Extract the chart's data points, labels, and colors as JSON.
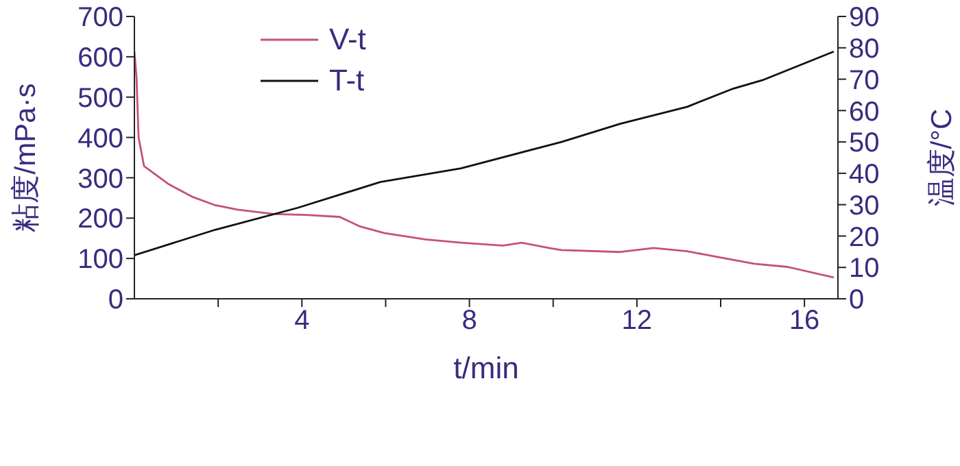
{
  "chart_data": {
    "type": "line",
    "xlabel": "t/min",
    "ylabel": "粘度/mPa·s",
    "y2label": "温度/°C",
    "xlim": [
      0,
      16.8
    ],
    "xticks": [
      {
        "value": 2,
        "label": null
      },
      4,
      {
        "value": 6,
        "label": null
      },
      8,
      {
        "value": 10,
        "label": null
      },
      12,
      {
        "value": 14,
        "label": null
      },
      16
    ],
    "ylim": [
      0,
      700
    ],
    "yticks": [
      0,
      100,
      200,
      300,
      400,
      500,
      600,
      700
    ],
    "y2lim": [
      0,
      90
    ],
    "y2ticks": [
      0,
      10,
      20,
      30,
      40,
      50,
      60,
      70,
      80,
      90
    ],
    "legend": "top left",
    "grid": false,
    "marker": "none",
    "line_style": "solid",
    "series": [
      {
        "name": "V-t",
        "color": "#c4507c",
        "x": [
          0,
          0.05,
          0.1,
          0.23,
          0.82,
          1.38,
          1.93,
          2.46,
          3.34,
          4.1,
          4.9,
          5.4,
          5.97,
          6.95,
          7.8,
          8.8,
          9.25,
          9.9,
          10.2,
          11.6,
          12.4,
          13.2,
          13.7,
          14.8,
          15.6,
          16.7
        ],
        "values": [
          613,
          550,
          400,
          329,
          284,
          253,
          232,
          221,
          210,
          208,
          203,
          179,
          163,
          147,
          139,
          132,
          139,
          126,
          121,
          116,
          126,
          118,
          108,
          87,
          79,
          53
        ]
      },
      {
        "name": "T-t",
        "color": "#111111",
        "axis": "y2",
        "x": [
          0,
          1.93,
          3.9,
          5.87,
          7.8,
          10.2,
          11.6,
          13.2,
          14.3,
          15,
          16.7
        ],
        "values": [
          13.9,
          22,
          29,
          37.2,
          41.6,
          50,
          55.8,
          61.2,
          67,
          69.7,
          78.8
        ]
      }
    ]
  }
}
